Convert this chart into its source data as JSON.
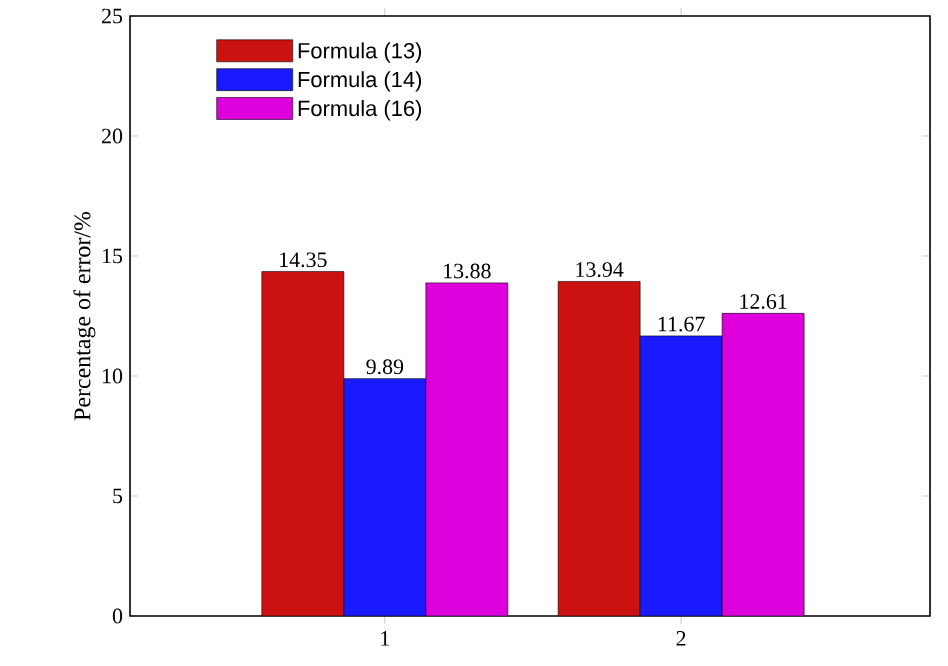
{
  "chart_data": {
    "type": "bar",
    "ylabel": "Percentage of error/%",
    "categories": [
      "1",
      "2"
    ],
    "series": [
      {
        "name": "Formula (13)",
        "color": "#cc1111",
        "values": [
          14.35,
          13.94
        ]
      },
      {
        "name": "Formula (14)",
        "color": "#1a1aff",
        "values": [
          9.89,
          11.67
        ]
      },
      {
        "name": "Formula (16)",
        "color": "#dd00dd",
        "values": [
          13.88,
          12.61
        ]
      }
    ],
    "ylim": [
      0,
      25
    ],
    "yticks": [
      0,
      5,
      10,
      15,
      20,
      25
    ],
    "data_labels": true,
    "legend": "top left",
    "grid": false
  }
}
